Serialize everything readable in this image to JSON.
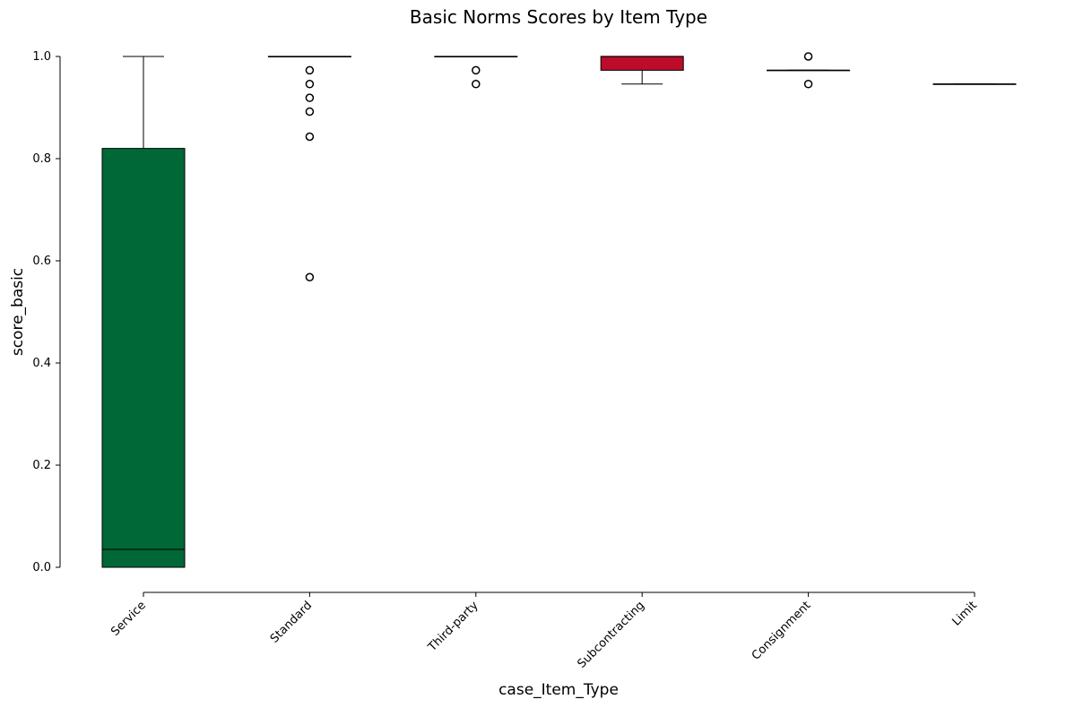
{
  "chart_data": {
    "type": "box",
    "title": "Basic Norms Scores by Item Type",
    "xlabel": "case_Item_Type",
    "ylabel": "score_basic",
    "ylim": [
      0.0,
      1.0
    ],
    "yticks": [
      "0.0",
      "0.2",
      "0.4",
      "0.6",
      "0.8",
      "1.0"
    ],
    "grid": false,
    "categories": [
      "Service",
      "Standard",
      "Third-party",
      "Subcontracting",
      "Consignment",
      "Limit"
    ],
    "boxes": [
      {
        "category": "Service",
        "whisker_low": 0.0,
        "q1": 0.0,
        "median": 0.035,
        "q3": 0.82,
        "whisker_high": 1.0,
        "outliers": [],
        "color": "#006837"
      },
      {
        "category": "Standard",
        "whisker_low": 1.0,
        "q1": 1.0,
        "median": 1.0,
        "q3": 1.0,
        "whisker_high": 1.0,
        "outliers": [
          0.973,
          0.946,
          0.919,
          0.892,
          0.843,
          0.568
        ],
        "color": "#1a9850"
      },
      {
        "category": "Third-party",
        "whisker_low": 1.0,
        "q1": 1.0,
        "median": 1.0,
        "q3": 1.0,
        "whisker_high": 1.0,
        "outliers": [
          0.973,
          0.946
        ],
        "color": "#91cf60"
      },
      {
        "category": "Subcontracting",
        "whisker_low": 0.946,
        "q1": 0.973,
        "median": 1.0,
        "q3": 1.0,
        "whisker_high": 1.0,
        "outliers": [],
        "color": "#bd0b2a"
      },
      {
        "category": "Consignment",
        "whisker_low": 0.973,
        "q1": 0.973,
        "median": 0.973,
        "q3": 0.973,
        "whisker_high": 0.973,
        "outliers": [
          1.0,
          0.946
        ],
        "color": "#fdae61"
      },
      {
        "category": "Limit",
        "whisker_low": 0.946,
        "q1": 0.946,
        "median": 0.946,
        "q3": 0.946,
        "whisker_high": 0.946,
        "outliers": [],
        "color": "#d73027"
      }
    ]
  }
}
